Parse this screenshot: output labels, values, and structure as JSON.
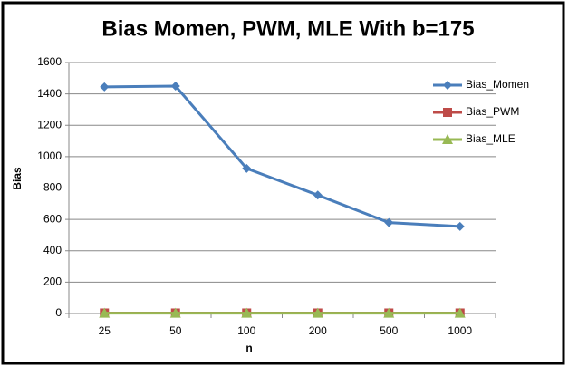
{
  "chart_data": {
    "type": "line",
    "title": "Bias Momen, PWM, MLE With b=175",
    "x_label": "n",
    "y_label": "Bias",
    "categories": [
      "25",
      "50",
      "100",
      "200",
      "500",
      "1000"
    ],
    "series": [
      {
        "name": "Bias_Momen",
        "color": "#4a7ebb",
        "marker": "diamond",
        "values": [
          1445,
          1450,
          925,
          755,
          580,
          555
        ]
      },
      {
        "name": "Bias_PWM",
        "color": "#be4b48",
        "marker": "square",
        "values": [
          3,
          3,
          3,
          3,
          3,
          3
        ]
      },
      {
        "name": "Bias_MLE",
        "color": "#98b954",
        "marker": "triangle",
        "values": [
          2,
          2,
          2,
          2,
          2,
          2
        ]
      }
    ],
    "ylim": [
      0,
      1600
    ],
    "yticks": [
      0,
      200,
      400,
      600,
      800,
      1000,
      1200,
      1400,
      1600
    ],
    "grid": true,
    "legend": "right"
  }
}
